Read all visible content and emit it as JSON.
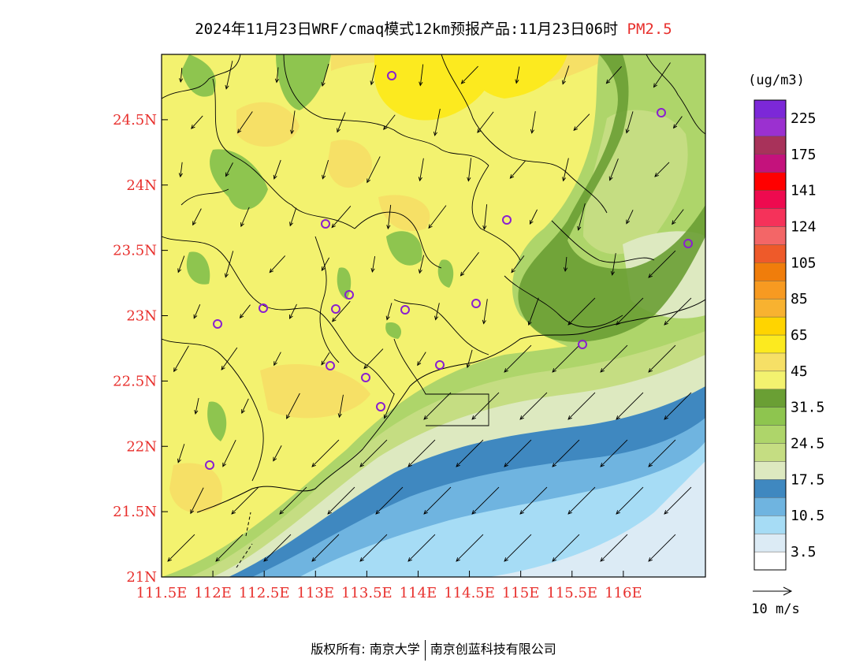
{
  "title": {
    "main": "2024年11月23日WRF/cmaq模式12km预报产品:11月23日06时",
    "variable": "PM2.5"
  },
  "colors": {
    "tick_label": "#e8302d",
    "frame": "#000000",
    "vector": "#000000",
    "station_marker": "#8a1fd0"
  },
  "axes": {
    "lon_ticks": [
      "111.5E",
      "112E",
      "112.5E",
      "113E",
      "113.5E",
      "114E",
      "114.5E",
      "115E",
      "115.5E",
      "116E"
    ],
    "lat_ticks": [
      "21N",
      "21.5N",
      "22N",
      "22.5N",
      "23N",
      "23.5N",
      "24N",
      "24.5N"
    ],
    "lon_range": [
      111.5,
      116.8
    ],
    "lat_range": [
      21.0,
      25.0
    ]
  },
  "colorbar": {
    "unit": "(ug/m3)",
    "levels": [
      "3.5",
      "10.5",
      "17.5",
      "24.5",
      "31.5",
      "45",
      "65",
      "85",
      "105",
      "124",
      "141",
      "175",
      "225"
    ],
    "colors_bottom_to_top": [
      "#ffffff",
      "#dcebf5",
      "#a6dcf5",
      "#6fb4e0",
      "#3f88c0",
      "#dde9c0",
      "#c5dd82",
      "#aed56a",
      "#8ec54f",
      "#6a9f34",
      "#f3f26f",
      "#f6e066",
      "#fcea1f",
      "#ffd400",
      "#f8b230",
      "#f79a21",
      "#f07d0b",
      "#ee5a2a",
      "#f36667",
      "#f5325a",
      "#ee0a4f",
      "#ff0000",
      "#c4127c",
      "#a8325a",
      "#9b30d0",
      "#7c28d8"
    ]
  },
  "wind_legend": {
    "label": "10 m/s"
  },
  "footer": {
    "label": "版权所有:",
    "org1": "南京大学",
    "org2": "南京创蓝科技有限公司"
  }
}
